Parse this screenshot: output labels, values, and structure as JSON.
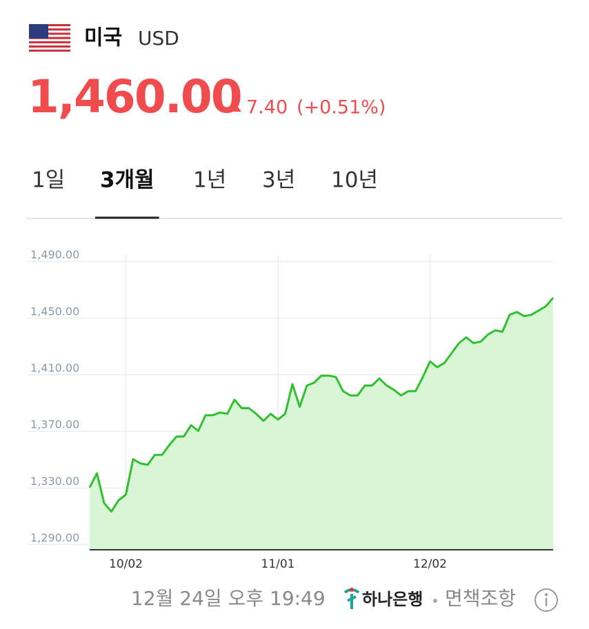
{
  "header": {
    "country": "미국",
    "currency": "USD"
  },
  "quote": {
    "price": "1,460.00",
    "change": "7.40",
    "change_percent": "(+0.51%)"
  },
  "tabs": [
    "1일",
    "3개월",
    "1년",
    "3년",
    "10년"
  ],
  "active_tab": 1,
  "chart_data": {
    "type": "area",
    "categories": [
      null,
      null,
      null,
      null,
      null,
      "10/02",
      null,
      null,
      null,
      null,
      null,
      null,
      null,
      null,
      null,
      null,
      null,
      null,
      null,
      null,
      null,
      null,
      null,
      null,
      null,
      null,
      "11/01",
      null,
      null,
      null,
      null,
      null,
      null,
      null,
      null,
      null,
      null,
      null,
      null,
      null,
      null,
      null,
      null,
      null,
      null,
      null,
      null,
      "12/02",
      null,
      null,
      null,
      null,
      null,
      null,
      null,
      null,
      null,
      null,
      null,
      null,
      null,
      null,
      null,
      null,
      null
    ],
    "values": [
      1326,
      1336,
      1315,
      1309,
      1317,
      1321,
      1346,
      1343,
      1342,
      1349,
      1349,
      1356,
      1362,
      1362,
      1370,
      1366,
      1377,
      1377,
      1379,
      1378,
      1388,
      1382,
      1382,
      1378,
      1373,
      1378,
      1374,
      1378,
      1399,
      1383,
      1398,
      1400,
      1405,
      1405,
      1404,
      1394,
      1391,
      1391,
      1398,
      1398,
      1403,
      1398,
      1395,
      1391,
      1394,
      1394,
      1404,
      1415,
      1411,
      1414,
      1421,
      1428,
      1432,
      1428,
      1429,
      1434,
      1437,
      1436,
      1448,
      1450,
      1447,
      1448,
      1451,
      1454,
      1460
    ],
    "color": "#2fbf2f",
    "area_color": "#d8f5d6",
    "ylim": [
      1282,
      1500
    ],
    "yticks": [
      {
        "value": 1290,
        "label": "1,290.00"
      },
      {
        "value": 1330,
        "label": "1,330.00"
      },
      {
        "value": 1370,
        "label": "1,370.00"
      },
      {
        "value": 1410,
        "label": "1,410.00"
      },
      {
        "value": 1450,
        "label": "1,450.00"
      },
      {
        "value": 1490,
        "label": "1,490.00"
      }
    ],
    "grid": true
  },
  "footer": {
    "timestamp": "12월 24일 오후 19:49",
    "bank": "하나은행",
    "disclaimer": "면책조항"
  }
}
